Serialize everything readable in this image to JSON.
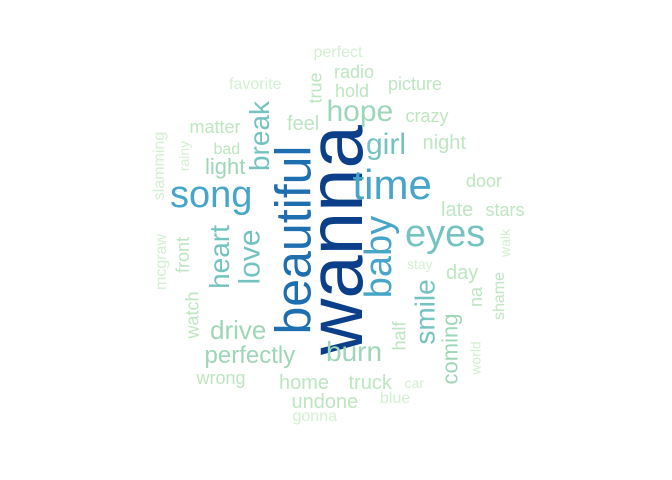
{
  "palette": {
    "c1": "#0b3f8a",
    "c2": "#1f6fb0",
    "c3": "#46a5c8",
    "c4": "#74c3c1",
    "c5": "#9ed6b8",
    "c6": "#bde6c1",
    "c7": "#d4efd2"
  },
  "words": [
    {
      "text": "wanna",
      "color": "c1",
      "rotated": true
    },
    {
      "text": "beautiful",
      "color": "c2",
      "rotated": true
    },
    {
      "text": "time",
      "color": "c3",
      "rotated": false
    },
    {
      "text": "song",
      "color": "c3",
      "rotated": false
    },
    {
      "text": "baby",
      "color": "c3",
      "rotated": true
    },
    {
      "text": "eyes",
      "color": "c4",
      "rotated": false
    },
    {
      "text": "love",
      "color": "c4",
      "rotated": true
    },
    {
      "text": "girl",
      "color": "c4",
      "rotated": false
    },
    {
      "text": "smile",
      "color": "c4",
      "rotated": true
    },
    {
      "text": "break",
      "color": "c4",
      "rotated": true
    },
    {
      "text": "heart",
      "color": "c4",
      "rotated": true
    },
    {
      "text": "hope",
      "color": "c5",
      "rotated": false
    },
    {
      "text": "burn",
      "color": "c5",
      "rotated": false
    },
    {
      "text": "drive",
      "color": "c5",
      "rotated": false
    },
    {
      "text": "perfectly",
      "color": "c5",
      "rotated": false
    },
    {
      "text": "coming",
      "color": "c5",
      "rotated": true
    },
    {
      "text": "light",
      "color": "c5",
      "rotated": false
    },
    {
      "text": "night",
      "color": "c6",
      "rotated": false
    },
    {
      "text": "late",
      "color": "c6",
      "rotated": false
    },
    {
      "text": "stars",
      "color": "c6",
      "rotated": false
    },
    {
      "text": "day",
      "color": "c6",
      "rotated": false
    },
    {
      "text": "matter",
      "color": "c6",
      "rotated": false
    },
    {
      "text": "feel",
      "color": "c6",
      "rotated": false
    },
    {
      "text": "crazy",
      "color": "c6",
      "rotated": false
    },
    {
      "text": "picture",
      "color": "c6",
      "rotated": false
    },
    {
      "text": "radio",
      "color": "c6",
      "rotated": false
    },
    {
      "text": "hold",
      "color": "c6",
      "rotated": false
    },
    {
      "text": "true",
      "color": "c6",
      "rotated": true
    },
    {
      "text": "door",
      "color": "c6",
      "rotated": false
    },
    {
      "text": "home",
      "color": "c6",
      "rotated": false
    },
    {
      "text": "truck",
      "color": "c6",
      "rotated": false
    },
    {
      "text": "undone",
      "color": "c6",
      "rotated": false
    },
    {
      "text": "wrong",
      "color": "c6",
      "rotated": false
    },
    {
      "text": "half",
      "color": "c6",
      "rotated": true
    },
    {
      "text": "watch",
      "color": "c6",
      "rotated": true
    },
    {
      "text": "front",
      "color": "c6",
      "rotated": true
    },
    {
      "text": "na",
      "color": "c6",
      "rotated": true
    },
    {
      "text": "shame",
      "color": "c6",
      "rotated": true
    },
    {
      "text": "bad",
      "color": "c6",
      "rotated": false
    },
    {
      "text": "walk",
      "color": "c7",
      "rotated": true
    },
    {
      "text": "world",
      "color": "c7",
      "rotated": true
    },
    {
      "text": "stay",
      "color": "c7",
      "rotated": false
    },
    {
      "text": "car",
      "color": "c7",
      "rotated": false
    },
    {
      "text": "blue",
      "color": "c7",
      "rotated": false
    },
    {
      "text": "gonna",
      "color": "c7",
      "rotated": false
    },
    {
      "text": "perfect",
      "color": "c7",
      "rotated": false
    },
    {
      "text": "favorite",
      "color": "c7",
      "rotated": false
    },
    {
      "text": "rainy",
      "color": "c7",
      "rotated": true
    },
    {
      "text": "slamming",
      "color": "c7",
      "rotated": true
    },
    {
      "text": "mcgraw",
      "color": "c7",
      "rotated": true
    }
  ]
}
